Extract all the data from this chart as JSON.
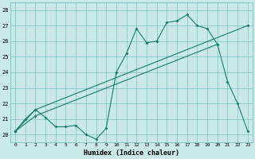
{
  "xlabel": "Humidex (Indice chaleur)",
  "bg_color": "#caeaea",
  "grid_color": "#68b8b8",
  "line_color": "#1a7a6e",
  "xlim": [
    -0.5,
    23.5
  ],
  "ylim": [
    19.5,
    28.5
  ],
  "xticks": [
    0,
    1,
    2,
    3,
    4,
    5,
    6,
    7,
    8,
    9,
    10,
    11,
    12,
    13,
    14,
    15,
    16,
    17,
    18,
    19,
    20,
    21,
    22,
    23
  ],
  "yticks": [
    20,
    21,
    22,
    23,
    24,
    25,
    26,
    27,
    28
  ],
  "line1_x": [
    0,
    1,
    2,
    3,
    4,
    5,
    6,
    7,
    8,
    9,
    10,
    11,
    12,
    13,
    14,
    15,
    16,
    17,
    18,
    19,
    20,
    21,
    22,
    23
  ],
  "line1_y": [
    20.2,
    21.0,
    21.6,
    21.1,
    20.5,
    20.5,
    20.6,
    20.0,
    19.7,
    20.4,
    24.0,
    25.2,
    26.8,
    25.9,
    26.0,
    27.2,
    27.3,
    27.7,
    27.0,
    26.8,
    25.8,
    23.4,
    22.0,
    20.2
  ],
  "line2_x": [
    0,
    2,
    23
  ],
  "line2_y": [
    20.2,
    21.6,
    27.0
  ],
  "line3_x": [
    0,
    2,
    20
  ],
  "line3_y": [
    20.2,
    21.2,
    25.8
  ]
}
